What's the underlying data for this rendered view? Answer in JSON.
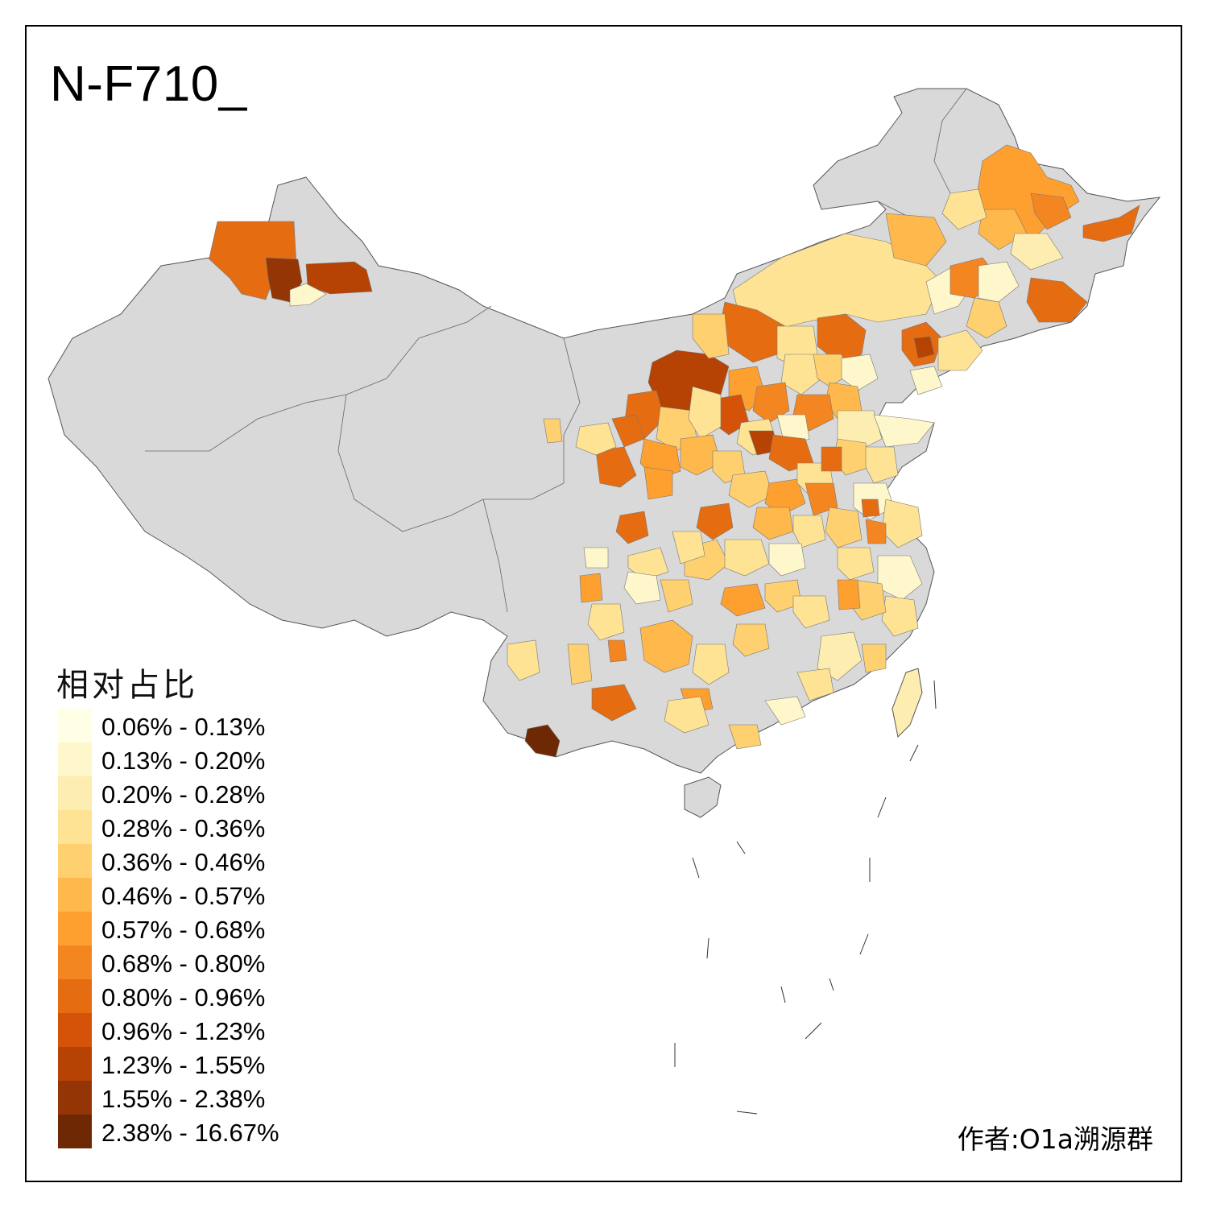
{
  "title": "N-F710_",
  "legend": {
    "title": "相对占比",
    "bins": [
      {
        "label": "0.06% - 0.13%",
        "color": "#ffffe5"
      },
      {
        "label": "0.13% - 0.20%",
        "color": "#fff7cc"
      },
      {
        "label": "0.20% - 0.28%",
        "color": "#feedb0"
      },
      {
        "label": "0.28% - 0.36%",
        "color": "#fee394"
      },
      {
        "label": "0.36% - 0.46%",
        "color": "#fed06f"
      },
      {
        "label": "0.46% - 0.57%",
        "color": "#feb84c"
      },
      {
        "label": "0.57% - 0.68%",
        "color": "#fea030"
      },
      {
        "label": "0.68% - 0.80%",
        "color": "#f48621"
      },
      {
        "label": "0.80% - 0.96%",
        "color": "#e66c12"
      },
      {
        "label": "0.96% - 1.23%",
        "color": "#d45309"
      },
      {
        "label": "1.23% - 1.55%",
        "color": "#b64304"
      },
      {
        "label": "1.55% - 2.38%",
        "color": "#933504"
      },
      {
        "label": "2.38% - 16.67%",
        "color": "#6e2904"
      }
    ]
  },
  "credit": "作者:O1a溯源群",
  "colors": {
    "no_data": "#d9d9d9",
    "border": "#555555",
    "frame": "#000000"
  }
}
